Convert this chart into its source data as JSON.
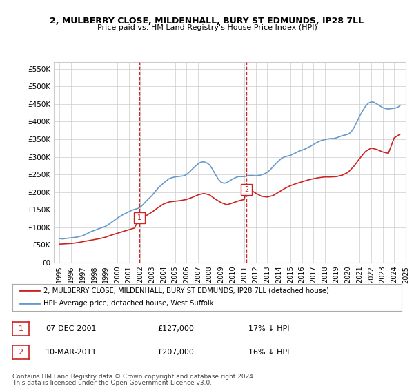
{
  "title_line1": "2, MULBERRY CLOSE, MILDENHALL, BURY ST EDMUNDS, IP28 7LL",
  "title_line2": "Price paid vs. HM Land Registry's House Price Index (HPI)",
  "ylabel": "",
  "background_color": "#ffffff",
  "plot_bg_color": "#ffffff",
  "grid_color": "#cccccc",
  "hpi_color": "#6699cc",
  "price_color": "#cc2222",
  "marker_vline_color": "#cc2222",
  "marker_box_color": "#cc2222",
  "ylim": [
    0,
    570000
  ],
  "yticks": [
    0,
    50000,
    100000,
    150000,
    200000,
    250000,
    300000,
    350000,
    400000,
    450000,
    500000,
    550000
  ],
  "ytick_labels": [
    "£0",
    "£50K",
    "£100K",
    "£150K",
    "£200K",
    "£250K",
    "£300K",
    "£350K",
    "£400K",
    "£450K",
    "£500K",
    "£550K"
  ],
  "sale1_date": 2001.92,
  "sale1_price": 127000,
  "sale1_label": "1",
  "sale2_date": 2011.19,
  "sale2_price": 207000,
  "sale2_label": "2",
  "legend_line1": "2, MULBERRY CLOSE, MILDENHALL, BURY ST EDMUNDS, IP28 7LL (detached house)",
  "legend_line2": "HPI: Average price, detached house, West Suffolk",
  "table_row1": [
    "1",
    "07-DEC-2001",
    "£127,000",
    "17% ↓ HPI"
  ],
  "table_row2": [
    "2",
    "10-MAR-2011",
    "£207,000",
    "16% ↓ HPI"
  ],
  "footer_line1": "Contains HM Land Registry data © Crown copyright and database right 2024.",
  "footer_line2": "This data is licensed under the Open Government Licence v3.0.",
  "hpi_x": [
    1995.0,
    1995.25,
    1995.5,
    1995.75,
    1996.0,
    1996.25,
    1996.5,
    1996.75,
    1997.0,
    1997.25,
    1997.5,
    1997.75,
    1998.0,
    1998.25,
    1998.5,
    1998.75,
    1999.0,
    1999.25,
    1999.5,
    1999.75,
    2000.0,
    2000.25,
    2000.5,
    2000.75,
    2001.0,
    2001.25,
    2001.5,
    2001.75,
    2002.0,
    2002.25,
    2002.5,
    2002.75,
    2003.0,
    2003.25,
    2003.5,
    2003.75,
    2004.0,
    2004.25,
    2004.5,
    2004.75,
    2005.0,
    2005.25,
    2005.5,
    2005.75,
    2006.0,
    2006.25,
    2006.5,
    2006.75,
    2007.0,
    2007.25,
    2007.5,
    2007.75,
    2008.0,
    2008.25,
    2008.5,
    2008.75,
    2009.0,
    2009.25,
    2009.5,
    2009.75,
    2010.0,
    2010.25,
    2010.5,
    2010.75,
    2011.0,
    2011.25,
    2011.5,
    2011.75,
    2012.0,
    2012.25,
    2012.5,
    2012.75,
    2013.0,
    2013.25,
    2013.5,
    2013.75,
    2014.0,
    2014.25,
    2014.5,
    2014.75,
    2015.0,
    2015.25,
    2015.5,
    2015.75,
    2016.0,
    2016.25,
    2016.5,
    2016.75,
    2017.0,
    2017.25,
    2017.5,
    2017.75,
    2018.0,
    2018.25,
    2018.5,
    2018.75,
    2019.0,
    2019.25,
    2019.5,
    2019.75,
    2020.0,
    2020.25,
    2020.5,
    2020.75,
    2021.0,
    2021.25,
    2021.5,
    2021.75,
    2022.0,
    2022.25,
    2022.5,
    2022.75,
    2023.0,
    2023.25,
    2023.5,
    2023.75,
    2024.0,
    2024.25,
    2024.5
  ],
  "hpi_y": [
    68000,
    67000,
    68000,
    69000,
    70000,
    71000,
    72000,
    74000,
    76000,
    80000,
    84000,
    88000,
    91000,
    94000,
    97000,
    100000,
    103000,
    108000,
    114000,
    120000,
    126000,
    131000,
    136000,
    140000,
    144000,
    148000,
    151000,
    153000,
    157000,
    165000,
    174000,
    182000,
    190000,
    200000,
    210000,
    218000,
    225000,
    232000,
    238000,
    241000,
    243000,
    244000,
    245000,
    246000,
    250000,
    257000,
    265000,
    273000,
    280000,
    285000,
    286000,
    283000,
    277000,
    265000,
    250000,
    237000,
    228000,
    225000,
    227000,
    232000,
    237000,
    241000,
    244000,
    244000,
    244000,
    246000,
    247000,
    247000,
    246000,
    247000,
    249000,
    252000,
    256000,
    263000,
    272000,
    281000,
    289000,
    296000,
    300000,
    302000,
    304000,
    308000,
    312000,
    316000,
    319000,
    322000,
    326000,
    330000,
    335000,
    340000,
    344000,
    347000,
    349000,
    351000,
    352000,
    352000,
    354000,
    357000,
    360000,
    362000,
    364000,
    370000,
    382000,
    398000,
    415000,
    430000,
    443000,
    452000,
    456000,
    455000,
    450000,
    445000,
    440000,
    437000,
    436000,
    437000,
    438000,
    440000,
    445000
  ],
  "price_x": [
    1995.0,
    1995.5,
    1996.0,
    1996.5,
    1997.0,
    1997.5,
    1998.0,
    1998.5,
    1999.0,
    1999.5,
    2000.0,
    2000.5,
    2001.0,
    2001.5,
    2001.92,
    2002.0,
    2002.5,
    2003.0,
    2003.5,
    2004.0,
    2004.5,
    2005.0,
    2005.5,
    2006.0,
    2006.5,
    2007.0,
    2007.5,
    2008.0,
    2008.5,
    2009.0,
    2009.5,
    2010.0,
    2010.5,
    2011.0,
    2011.19,
    2011.5,
    2012.0,
    2012.5,
    2013.0,
    2013.5,
    2014.0,
    2014.5,
    2015.0,
    2015.5,
    2016.0,
    2016.5,
    2017.0,
    2017.5,
    2018.0,
    2018.5,
    2019.0,
    2019.5,
    2020.0,
    2020.5,
    2021.0,
    2021.5,
    2022.0,
    2022.5,
    2023.0,
    2023.5,
    2024.0,
    2024.5
  ],
  "price_y": [
    52000,
    53000,
    54000,
    56000,
    59000,
    62000,
    65000,
    68000,
    72000,
    78000,
    83000,
    88000,
    93000,
    98000,
    127000,
    127000,
    133000,
    143000,
    155000,
    166000,
    172000,
    174000,
    176000,
    179000,
    185000,
    192000,
    196000,
    192000,
    180000,
    170000,
    164000,
    169000,
    175000,
    179000,
    207000,
    207000,
    197000,
    188000,
    186000,
    190000,
    200000,
    210000,
    218000,
    224000,
    229000,
    234000,
    238000,
    241000,
    243000,
    243000,
    244000,
    248000,
    256000,
    273000,
    295000,
    315000,
    325000,
    321000,
    314000,
    310000,
    354000,
    364000
  ]
}
